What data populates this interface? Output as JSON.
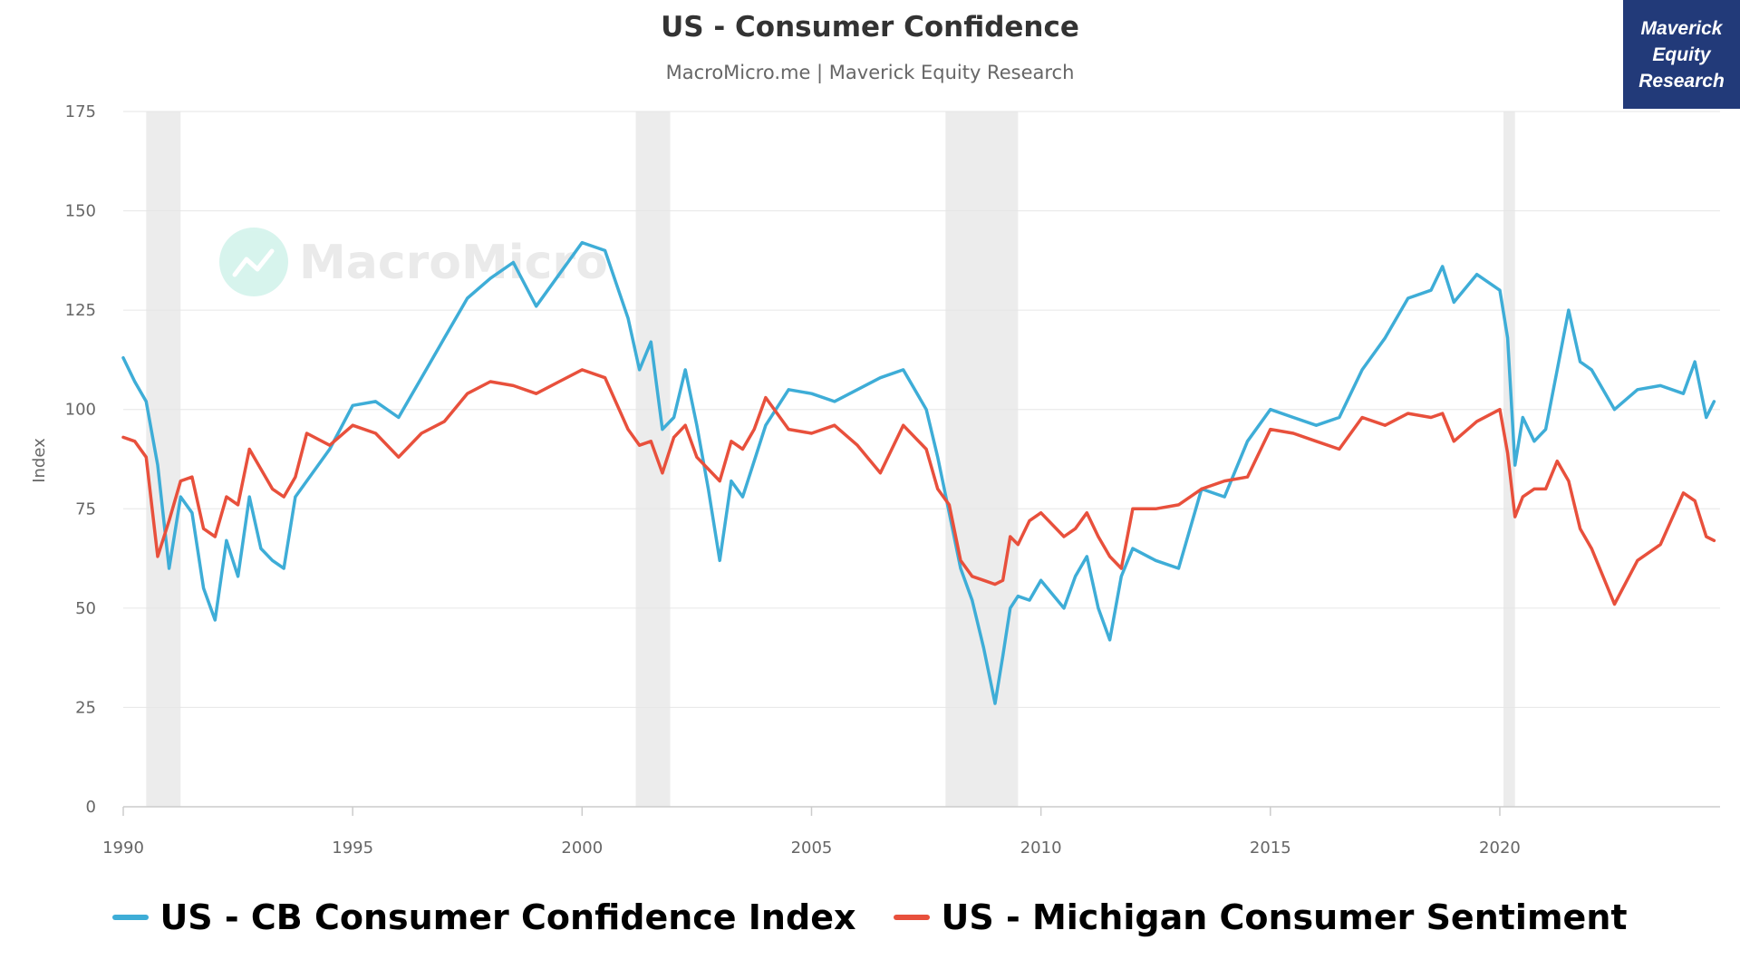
{
  "brand": {
    "lines": [
      "Maverick",
      "Equity",
      "Research"
    ],
    "background": "#223a79",
    "text_color": "#ffffff"
  },
  "watermark": {
    "text": "MacroMicro",
    "icon": "trend-chart-icon",
    "color": "#dddddd"
  },
  "colors": {
    "cb": "#3eadd7",
    "michigan": "#e8503c",
    "recession": "#ececec",
    "grid": "#e6e6e6"
  },
  "chart_data": {
    "type": "line",
    "title": "US - Consumer Confidence",
    "subtitle": "MacroMicro.me | Maverick Equity Research",
    "ylabel": "Index",
    "ylim": [
      0,
      175
    ],
    "yticks": [
      0,
      25,
      50,
      75,
      100,
      125,
      150,
      175
    ],
    "xlim": [
      1990,
      2024.8
    ],
    "xticks": [
      1990,
      1995,
      2000,
      2005,
      2010,
      2015,
      2020
    ],
    "grid": true,
    "legend_position": "bottom",
    "recessions": [
      [
        1990.5,
        1991.25
      ],
      [
        2001.17,
        2001.92
      ],
      [
        2007.92,
        2009.5
      ],
      [
        2020.08,
        2020.33
      ]
    ],
    "series": [
      {
        "name": "US - CB Consumer Confidence Index",
        "color": "#3eadd7",
        "x": [
          1990.0,
          1990.25,
          1990.5,
          1990.75,
          1991.0,
          1991.25,
          1991.5,
          1991.75,
          1992.0,
          1992.25,
          1992.5,
          1992.75,
          1993.0,
          1993.25,
          1993.5,
          1993.75,
          1994.0,
          1994.5,
          1995.0,
          1995.5,
          1996.0,
          1996.5,
          1997.0,
          1997.5,
          1998.0,
          1998.5,
          1999.0,
          1999.5,
          2000.0,
          2000.5,
          2001.0,
          2001.25,
          2001.5,
          2001.75,
          2002.0,
          2002.25,
          2002.5,
          2002.75,
          2003.0,
          2003.25,
          2003.5,
          2003.75,
          2004.0,
          2004.5,
          2005.0,
          2005.5,
          2006.0,
          2006.5,
          2007.0,
          2007.5,
          2007.75,
          2008.0,
          2008.25,
          2008.5,
          2008.75,
          2009.0,
          2009.17,
          2009.33,
          2009.5,
          2009.75,
          2010.0,
          2010.5,
          2010.75,
          2011.0,
          2011.25,
          2011.5,
          2011.75,
          2012.0,
          2012.5,
          2013.0,
          2013.5,
          2014.0,
          2014.5,
          2015.0,
          2015.5,
          2016.0,
          2016.5,
          2017.0,
          2017.5,
          2018.0,
          2018.5,
          2018.75,
          2019.0,
          2019.5,
          2020.0,
          2020.17,
          2020.33,
          2020.5,
          2020.75,
          2021.0,
          2021.25,
          2021.5,
          2021.75,
          2022.0,
          2022.5,
          2023.0,
          2023.5,
          2024.0,
          2024.25,
          2024.5,
          2024.67
        ],
        "values": [
          113,
          107,
          102,
          86,
          60,
          78,
          74,
          55,
          47,
          67,
          58,
          78,
          65,
          62,
          60,
          78,
          82,
          90,
          101,
          102,
          98,
          108,
          118,
          128,
          133,
          137,
          126,
          134,
          142,
          140,
          123,
          110,
          117,
          95,
          98,
          110,
          96,
          80,
          62,
          82,
          78,
          87,
          96,
          105,
          104,
          102,
          105,
          108,
          110,
          100,
          88,
          74,
          60,
          52,
          40,
          26,
          38,
          50,
          53,
          52,
          57,
          50,
          58,
          63,
          50,
          42,
          58,
          65,
          62,
          60,
          80,
          78,
          92,
          100,
          98,
          96,
          98,
          110,
          118,
          128,
          130,
          136,
          127,
          134,
          130,
          118,
          86,
          98,
          92,
          95,
          110,
          125,
          112,
          110,
          100,
          105,
          106,
          104,
          112,
          98,
          102
        ]
      },
      {
        "name": "US - Michigan Consumer Sentiment",
        "color": "#e8503c",
        "x": [
          1990.0,
          1990.25,
          1990.5,
          1990.75,
          1991.0,
          1991.25,
          1991.5,
          1991.75,
          1992.0,
          1992.25,
          1992.5,
          1992.75,
          1993.0,
          1993.25,
          1993.5,
          1993.75,
          1994.0,
          1994.5,
          1995.0,
          1995.5,
          1996.0,
          1996.5,
          1997.0,
          1997.5,
          1998.0,
          1998.5,
          1999.0,
          1999.5,
          2000.0,
          2000.5,
          2001.0,
          2001.25,
          2001.5,
          2001.75,
          2002.0,
          2002.25,
          2002.5,
          2002.75,
          2003.0,
          2003.25,
          2003.5,
          2003.75,
          2004.0,
          2004.5,
          2005.0,
          2005.5,
          2006.0,
          2006.5,
          2007.0,
          2007.5,
          2007.75,
          2008.0,
          2008.25,
          2008.5,
          2008.75,
          2009.0,
          2009.17,
          2009.33,
          2009.5,
          2009.75,
          2010.0,
          2010.5,
          2010.75,
          2011.0,
          2011.25,
          2011.5,
          2011.75,
          2012.0,
          2012.5,
          2013.0,
          2013.5,
          2014.0,
          2014.5,
          2015.0,
          2015.5,
          2016.0,
          2016.5,
          2017.0,
          2017.5,
          2018.0,
          2018.5,
          2018.75,
          2019.0,
          2019.5,
          2020.0,
          2020.17,
          2020.33,
          2020.5,
          2020.75,
          2021.0,
          2021.25,
          2021.5,
          2021.75,
          2022.0,
          2022.5,
          2023.0,
          2023.5,
          2024.0,
          2024.25,
          2024.5,
          2024.67
        ],
        "values": [
          93,
          92,
          88,
          63,
          72,
          82,
          83,
          70,
          68,
          78,
          76,
          90,
          85,
          80,
          78,
          83,
          94,
          91,
          96,
          94,
          88,
          94,
          97,
          104,
          107,
          106,
          104,
          107,
          110,
          108,
          95,
          91,
          92,
          84,
          93,
          96,
          88,
          85,
          82,
          92,
          90,
          95,
          103,
          95,
          94,
          96,
          91,
          84,
          96,
          90,
          80,
          76,
          62,
          58,
          57,
          56,
          57,
          68,
          66,
          72,
          74,
          68,
          70,
          74,
          68,
          63,
          60,
          75,
          75,
          76,
          80,
          82,
          83,
          95,
          94,
          92,
          90,
          98,
          96,
          99,
          98,
          99,
          92,
          97,
          100,
          89,
          73,
          78,
          80,
          80,
          87,
          82,
          70,
          65,
          51,
          62,
          66,
          79,
          77,
          68,
          67
        ]
      }
    ]
  }
}
